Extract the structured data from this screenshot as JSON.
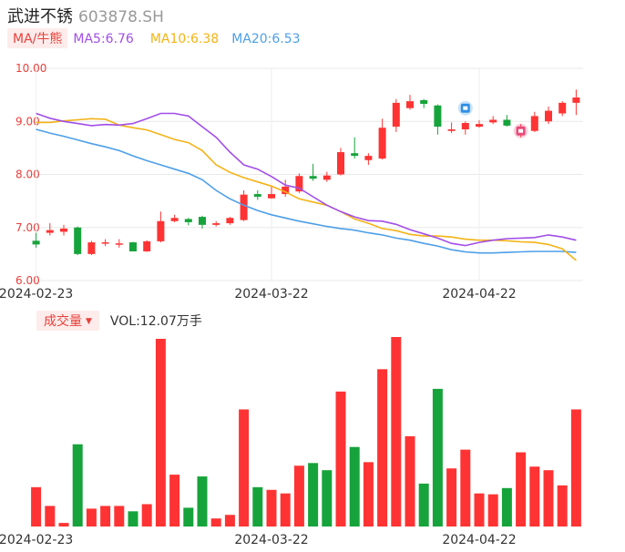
{
  "stock": {
    "name": "武进不锈",
    "code": "603878.SH"
  },
  "ma": {
    "tag": "MA/牛熊",
    "ma5": "MA5:6.76",
    "ma10": "MA10:6.38",
    "ma20": "MA20:6.53"
  },
  "volume_panel": {
    "tag": "成交量",
    "value": "VOL:12.07万手"
  },
  "colors": {
    "up": "#ff3333",
    "down": "#17a33b",
    "ma5": "#a24ee8",
    "ma10": "#f3b316",
    "ma20": "#4d9fe8",
    "price_axis": "#e8403b"
  },
  "icons": [
    "blue-marker-icon",
    "pink-marker-icon"
  ],
  "chart_data": [
    {
      "type": "candlestick",
      "x_ticks": [
        "2024-02-23",
        "2024-03-22",
        "2024-04-22"
      ],
      "x_tick_index": [
        0,
        17,
        32
      ],
      "ylim": [
        6.0,
        10.0
      ],
      "y_ticks": [
        "10.00",
        "9.00",
        "8.00",
        "7.00",
        "6.00"
      ],
      "ohlc": [
        [
          6.75,
          6.68,
          6.9,
          6.62
        ],
        [
          6.9,
          6.95,
          7.08,
          6.85
        ],
        [
          6.92,
          6.98,
          7.05,
          6.85
        ],
        [
          7.0,
          6.5,
          7.02,
          6.48
        ],
        [
          6.5,
          6.72,
          6.75,
          6.48
        ],
        [
          6.7,
          6.72,
          6.78,
          6.65
        ],
        [
          6.7,
          6.7,
          6.78,
          6.62
        ],
        [
          6.72,
          6.55,
          6.73,
          6.55
        ],
        [
          6.55,
          6.74,
          6.76,
          6.54
        ],
        [
          6.74,
          7.12,
          7.3,
          6.72
        ],
        [
          7.12,
          7.18,
          7.24,
          7.1
        ],
        [
          7.16,
          7.1,
          7.18,
          7.04
        ],
        [
          7.2,
          7.05,
          7.22,
          6.98
        ],
        [
          7.05,
          7.08,
          7.12,
          7.02
        ],
        [
          7.08,
          7.18,
          7.2,
          7.05
        ],
        [
          7.14,
          7.62,
          7.7,
          7.12
        ],
        [
          7.63,
          7.58,
          7.7,
          7.52
        ],
        [
          7.55,
          7.63,
          7.78,
          7.54
        ],
        [
          7.63,
          7.77,
          7.9,
          7.58
        ],
        [
          7.68,
          7.97,
          8.02,
          7.65
        ],
        [
          7.97,
          7.92,
          8.2,
          7.88
        ],
        [
          7.9,
          7.98,
          8.05,
          7.86
        ],
        [
          8.0,
          8.42,
          8.5,
          7.98
        ],
        [
          8.4,
          8.35,
          8.7,
          8.3
        ],
        [
          8.27,
          8.35,
          8.4,
          8.18
        ],
        [
          8.3,
          8.88,
          9.05,
          8.28
        ],
        [
          8.9,
          9.35,
          9.42,
          8.8
        ],
        [
          9.25,
          9.38,
          9.5,
          9.22
        ],
        [
          9.4,
          9.33,
          9.42,
          9.25
        ],
        [
          9.3,
          8.9,
          9.32,
          8.75
        ],
        [
          8.82,
          8.85,
          8.98,
          8.78
        ],
        [
          8.85,
          8.97,
          9.0,
          8.75
        ],
        [
          8.9,
          8.95,
          9.02,
          8.88
        ],
        [
          8.98,
          9.03,
          9.1,
          8.95
        ],
        [
          9.03,
          8.92,
          9.12,
          8.9
        ],
        [
          8.85,
          8.85,
          8.95,
          8.7
        ],
        [
          8.82,
          9.1,
          9.18,
          8.8
        ],
        [
          9.0,
          9.2,
          9.28,
          8.95
        ],
        [
          9.15,
          9.35,
          9.38,
          9.1
        ],
        [
          9.35,
          9.45,
          9.6,
          9.12
        ]
      ],
      "ma5": [
        9.15,
        9.06,
        9.0,
        8.96,
        8.92,
        8.94,
        8.93,
        8.96,
        9.05,
        9.15,
        9.15,
        9.1,
        8.9,
        8.7,
        8.42,
        8.18,
        8.1,
        7.96,
        7.8,
        7.74,
        7.58,
        7.42,
        7.3,
        7.2,
        7.13,
        7.12,
        7.06,
        6.96,
        6.88,
        6.8,
        6.7,
        6.66,
        6.72,
        6.76,
        6.79,
        6.8,
        6.81,
        6.86,
        6.82,
        6.76
      ],
      "ma10": [
        8.98,
        8.98,
        9.01,
        9.03,
        9.05,
        9.04,
        8.93,
        8.88,
        8.84,
        8.75,
        8.66,
        8.6,
        8.45,
        8.18,
        8.04,
        7.94,
        7.86,
        7.78,
        7.67,
        7.54,
        7.48,
        7.42,
        7.3,
        7.16,
        7.08,
        6.98,
        6.94,
        6.87,
        6.84,
        6.84,
        6.82,
        6.78,
        6.76,
        6.76,
        6.75,
        6.73,
        6.72,
        6.68,
        6.6,
        6.38
      ],
      "ma20": [
        8.85,
        8.78,
        8.72,
        8.65,
        8.58,
        8.52,
        8.45,
        8.35,
        8.26,
        8.18,
        8.1,
        8.02,
        7.9,
        7.7,
        7.54,
        7.42,
        7.32,
        7.24,
        7.18,
        7.12,
        7.07,
        7.02,
        6.98,
        6.95,
        6.9,
        6.86,
        6.8,
        6.76,
        6.7,
        6.65,
        6.58,
        6.54,
        6.52,
        6.52,
        6.53,
        6.54,
        6.55,
        6.55,
        6.55,
        6.53
      ]
    },
    {
      "type": "bar",
      "name": "成交量",
      "x_ticks": [
        "2024-02-23",
        "2024-03-22",
        "2024-04-22"
      ],
      "x_tick_index": [
        0,
        17,
        32
      ],
      "values": [
        2.2,
        1.15,
        0.2,
        4.6,
        1.0,
        1.15,
        1.15,
        0.85,
        1.25,
        10.5,
        2.9,
        1.05,
        2.8,
        0.45,
        0.65,
        6.55,
        2.2,
        2.05,
        1.85,
        3.4,
        3.55,
        3.15,
        7.55,
        4.45,
        3.6,
        8.8,
        10.6,
        5.05,
        2.4,
        7.7,
        3.25,
        4.3,
        1.85,
        1.8,
        2.15,
        4.15,
        3.35,
        3.15,
        2.3,
        6.55
      ],
      "directions": [
        "up",
        "up",
        "up",
        "down",
        "up",
        "up",
        "up",
        "down",
        "up",
        "up",
        "up",
        "down",
        "down",
        "up",
        "up",
        "up",
        "down",
        "up",
        "up",
        "up",
        "down",
        "down",
        "up",
        "down",
        "up",
        "up",
        "up",
        "up",
        "down",
        "down",
        "up",
        "up",
        "up",
        "up",
        "down",
        "up",
        "up",
        "up",
        "up",
        "up"
      ]
    }
  ]
}
